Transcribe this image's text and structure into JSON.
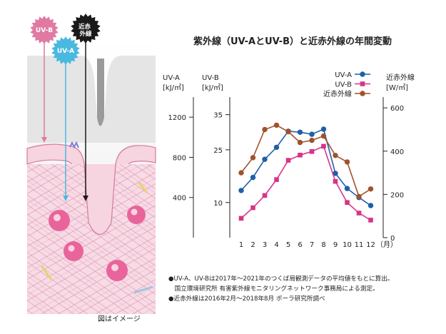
{
  "illustration": {
    "labels": {
      "uvb": "UV-B",
      "uva": "UV-A",
      "nir": "近赤\n外線"
    },
    "caption": "図はイメージ",
    "colors": {
      "uvb": "#e07aa3",
      "uva": "#49b9e0",
      "nir": "#1a1a1a",
      "skin": "#f3c9d6",
      "dermis_lines": "#d77aa0",
      "cell": "#e8649a"
    }
  },
  "chart_data": {
    "type": "line",
    "title": "紫外線（UV-AとUV-B）と近赤外線の年間変動",
    "x": [
      1,
      2,
      3,
      4,
      5,
      6,
      7,
      8,
      9,
      10,
      11,
      12
    ],
    "x_tick_labels": [
      "1",
      "2",
      "3",
      "4",
      "5",
      "6",
      "7",
      "8",
      "9",
      "10",
      "11",
      "12"
    ],
    "x_unit": "（月）",
    "axes": {
      "uva": {
        "label": "UV-A",
        "unit": "[kJ/㎡]",
        "ylim": [
          0,
          1400
        ],
        "ticks": [
          400,
          800,
          1200
        ]
      },
      "uvb": {
        "label": "UV-B",
        "unit": "[kJ/㎡]",
        "ylim": [
          0,
          40
        ],
        "ticks": [
          10,
          25,
          35
        ]
      },
      "nir": {
        "label": "近赤外線",
        "unit": "[W/㎡]",
        "ylim": [
          0,
          650
        ],
        "ticks": [
          0,
          200,
          400,
          600
        ]
      }
    },
    "series": [
      {
        "name": "UV-A",
        "axis": "uva",
        "color": "#1f5fa8",
        "marker": "circle",
        "values": [
          470,
          600,
          780,
          900,
          1060,
          1050,
          1030,
          1080,
          640,
          490,
          400,
          320
        ]
      },
      {
        "name": "UV-B",
        "axis": "uvb",
        "color": "#d6348a",
        "marker": "square",
        "values": [
          5.5,
          8.5,
          12.0,
          16.5,
          22.0,
          23.5,
          24.5,
          26.0,
          16.0,
          10.0,
          7.0,
          5.0
        ]
      },
      {
        "name": "近赤外線",
        "axis": "nir",
        "color": "#a0522d",
        "marker": "circle",
        "values": [
          300,
          370,
          500,
          520,
          490,
          440,
          450,
          470,
          380,
          350,
          190,
          225
        ]
      }
    ],
    "legend_position": "top-right",
    "grid": false
  },
  "notes": [
    "●UV-A、UV-Bは2017年～2021年のつくば局観測データの平均値をもとに算出。",
    "　国立環境研究所 有害紫外線モニタリングネットワーク事務局による測定。",
    "●近赤外線は2016年2月～2018年8月 ポーラ研究所調べ"
  ]
}
